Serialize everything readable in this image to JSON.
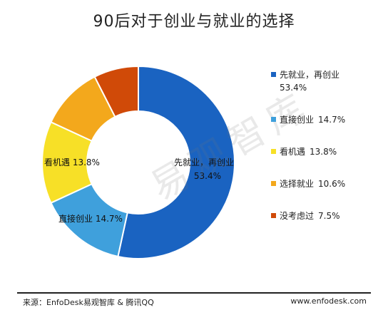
{
  "chart_data": {
    "type": "pie",
    "title": "90后对于创业与就业的选择",
    "categories": [
      "先就业，再创业",
      "直接创业",
      "看机遇",
      "选择就业",
      "没考虑过"
    ],
    "values": [
      53.4,
      14.7,
      13.8,
      10.6,
      7.5
    ],
    "value_labels": [
      "53.4%",
      "14.7%",
      "13.8%",
      "10.6%",
      "7.5%"
    ],
    "colors": [
      "#1a63c1",
      "#3fa0dc",
      "#f7e027",
      "#f3a81c",
      "#d04a08"
    ],
    "donut": true,
    "legend_position": "right"
  },
  "watermark": "易观智库",
  "footer": {
    "source": "来源：EnfoDesk易观智库 & 腾讯QQ",
    "site": "www.enfodesk.com"
  }
}
